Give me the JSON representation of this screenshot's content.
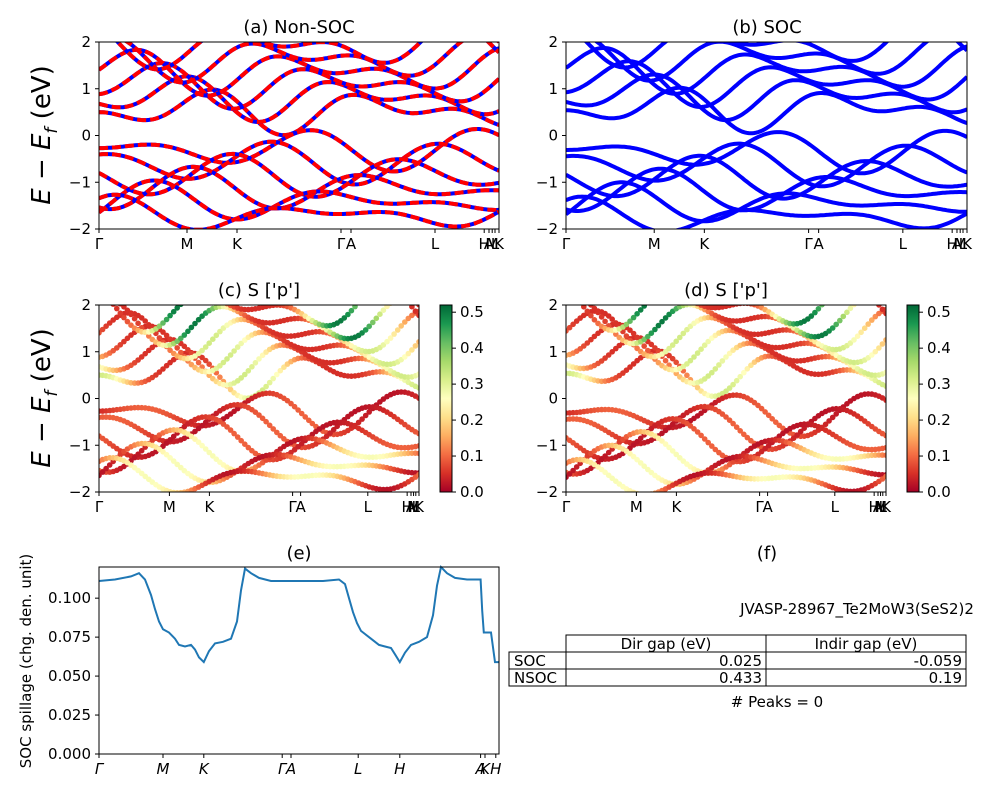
{
  "colors": {
    "nonsoc_a": "#ff0000",
    "nonsoc_b": "#0000ff",
    "soc": "#0000ff",
    "line": "#1f77b4",
    "colormap": [
      "#a50026",
      "#d73027",
      "#f46d43",
      "#fdae61",
      "#fee08b",
      "#ffffbf",
      "#d9ef8b",
      "#a6d96a",
      "#66bd63",
      "#1a9850",
      "#006837"
    ]
  },
  "labels": {
    "energy_ylabel": "E − E",
    "energy_ylabel_sub": "f",
    "energy_ylabel_unit": " (eV)",
    "spillage_ylabel": "SOC spillage (chg. den. unit)"
  },
  "chart_data": [
    {
      "id": "a",
      "type": "line",
      "title": "(a) Non-SOC",
      "ylim": [
        -2,
        2
      ],
      "yticks": [
        "2",
        "1",
        "0",
        "−1",
        "−2"
      ],
      "kpoint_labels": [
        "Γ",
        "M",
        "K",
        "Γ",
        "A",
        "L",
        "H",
        "A",
        "M",
        "L",
        "K"
      ],
      "kpoint_positions": [
        0,
        0.22,
        0.345,
        0.605,
        0.63,
        0.84,
        0.963,
        0.975,
        0.983,
        0.99,
        1.0
      ],
      "series": [
        {
          "bands_conduction_min_eV": 0.2,
          "bands_valence_max_eV": 0.0
        }
      ]
    },
    {
      "id": "b",
      "type": "line",
      "title": "(b) SOC",
      "ylim": [
        -2,
        2
      ],
      "yticks": [
        "2",
        "1",
        "0",
        "−1",
        "−2"
      ],
      "kpoint_labels": [
        "Γ",
        "M",
        "K",
        "Γ",
        "A",
        "L",
        "H",
        "A",
        "M",
        "L",
        "K"
      ]
    },
    {
      "id": "c",
      "type": "scatter",
      "title": "(c)  S ['p']",
      "ylim": [
        -2,
        2
      ],
      "yticks": [
        "2",
        "1",
        "0",
        "−1",
        "−2"
      ],
      "kpoint_labels": [
        "Γ",
        "M",
        "K",
        "Γ",
        "A",
        "L",
        "H",
        "A",
        "M",
        "L",
        "K"
      ],
      "colorbar": {
        "min": 0.0,
        "max": 0.52,
        "ticks": [
          "0.5",
          "0.4",
          "0.3",
          "0.2",
          "0.1",
          "0.0"
        ],
        "tick_values": [
          0.5,
          0.4,
          0.3,
          0.2,
          0.1,
          0.0
        ]
      }
    },
    {
      "id": "d",
      "type": "scatter",
      "title": "(d) S ['p']",
      "ylim": [
        -2,
        2
      ],
      "yticks": [
        "2",
        "1",
        "0",
        "−1",
        "−2"
      ],
      "kpoint_labels": [
        "Γ",
        "M",
        "K",
        "Γ",
        "A",
        "L",
        "H",
        "A",
        "M",
        "L",
        "K"
      ],
      "colorbar": {
        "min": 0.0,
        "max": 0.52,
        "ticks": [
          "0.5",
          "0.4",
          "0.3",
          "0.2",
          "0.1",
          "0.0"
        ],
        "tick_values": [
          0.5,
          0.4,
          0.3,
          0.2,
          0.1,
          0.0
        ]
      }
    },
    {
      "id": "e",
      "type": "line",
      "title": "(e)",
      "ylabel": "SOC spillage (chg. den. unit)",
      "ylim": [
        0,
        0.12
      ],
      "yticks": [
        "0.100",
        "0.075",
        "0.050",
        "0.025",
        "0.000"
      ],
      "ytick_values": [
        0.1,
        0.075,
        0.05,
        0.025,
        0.0
      ],
      "kpoint_labels": [
        "Γ",
        "M",
        "K",
        "Γ",
        "A",
        "L",
        "H",
        "A",
        "K",
        "H"
      ],
      "kpoint_positions": [
        0,
        0.16,
        0.262,
        0.458,
        0.48,
        0.648,
        0.752,
        0.954,
        0.965,
        0.992
      ],
      "x": [
        0,
        0.04,
        0.08,
        0.1,
        0.115,
        0.13,
        0.14,
        0.15,
        0.16,
        0.175,
        0.19,
        0.2,
        0.215,
        0.23,
        0.24,
        0.25,
        0.262,
        0.275,
        0.29,
        0.31,
        0.33,
        0.345,
        0.355,
        0.365,
        0.38,
        0.4,
        0.43,
        0.458,
        0.48,
        0.52,
        0.56,
        0.6,
        0.615,
        0.625,
        0.635,
        0.645,
        0.655,
        0.665,
        0.68,
        0.7,
        0.715,
        0.73,
        0.74,
        0.752,
        0.765,
        0.78,
        0.8,
        0.82,
        0.835,
        0.845,
        0.855,
        0.87,
        0.89,
        0.92,
        0.95,
        0.954,
        0.958,
        0.962,
        0.972,
        0.98,
        0.99,
        1.0
      ],
      "y": [
        0.111,
        0.112,
        0.114,
        0.116,
        0.112,
        0.102,
        0.093,
        0.085,
        0.08,
        0.078,
        0.074,
        0.07,
        0.069,
        0.07,
        0.067,
        0.062,
        0.059,
        0.066,
        0.071,
        0.072,
        0.074,
        0.085,
        0.105,
        0.119,
        0.116,
        0.113,
        0.111,
        0.111,
        0.111,
        0.111,
        0.111,
        0.112,
        0.109,
        0.1,
        0.091,
        0.084,
        0.079,
        0.077,
        0.074,
        0.07,
        0.069,
        0.068,
        0.064,
        0.059,
        0.065,
        0.07,
        0.072,
        0.075,
        0.089,
        0.108,
        0.12,
        0.116,
        0.113,
        0.112,
        0.112,
        0.112,
        0.092,
        0.078,
        0.078,
        0.078,
        0.059,
        0.059
      ]
    },
    {
      "id": "f",
      "type": "table",
      "title": "(f)",
      "header_text": "JVASP-28967_Te2MoW3(SeS2)2",
      "columns": [
        "",
        "Dir gap (eV)",
        "Indir gap (eV)"
      ],
      "rows": [
        [
          "SOC",
          "0.025",
          "-0.059"
        ],
        [
          "NSOC",
          "0.433",
          "0.19"
        ]
      ],
      "footer_text": "# Peaks = 0"
    }
  ]
}
